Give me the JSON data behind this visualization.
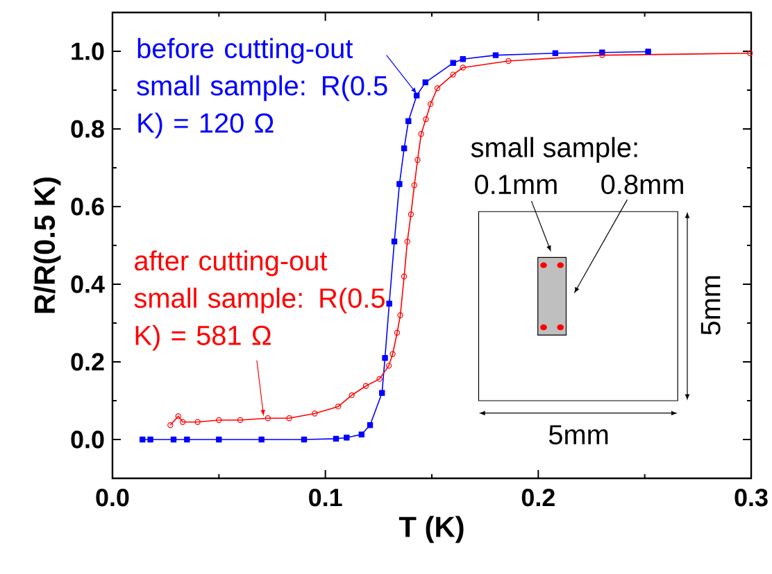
{
  "chart_data": {
    "type": "line",
    "xlabel": "T (K)",
    "ylabel": "R/R(0.5 K)",
    "xlim": [
      0,
      0.3
    ],
    "ylim": [
      -0.1,
      1.1
    ],
    "xticks": [
      {
        "value": 0,
        "label": "0.0"
      },
      0.1,
      0.2,
      0.3
    ],
    "yticks": [
      {
        "value": 0,
        "label": "0.0"
      },
      0.2,
      0.4,
      0.6,
      0.8,
      {
        "value": 1,
        "label": "1.0"
      }
    ],
    "grid": false,
    "series": [
      {
        "color": "#0000ff",
        "marker": "square",
        "x": [
          0.0141,
          0.0178,
          0.0287,
          0.035,
          0.05,
          0.07,
          0.09,
          0.105,
          0.11,
          0.117,
          0.121,
          0.1266,
          0.128,
          0.13,
          0.1324,
          0.1348,
          0.137,
          0.139,
          0.1429,
          0.147,
          0.16,
          0.1646,
          0.18,
          0.208,
          0.23,
          0.2516
        ],
        "values": [
          0,
          0,
          0,
          0,
          0,
          0,
          0,
          0.002,
          0.005,
          0.013,
          0.037,
          0.12,
          0.21,
          0.35,
          0.51,
          0.658,
          0.75,
          0.82,
          0.886,
          0.92,
          0.97,
          0.98,
          0.99,
          0.995,
          0.997,
          0.999
        ]
      },
      {
        "color": "#ff0000",
        "marker": "circle",
        "x": [
          0.0272,
          0.0309,
          0.033,
          0.04,
          0.05,
          0.06,
          0.073,
          0.083,
          0.095,
          0.106,
          0.1124,
          0.119,
          0.1254,
          0.1298,
          0.1316,
          0.1337,
          0.1352,
          0.137,
          0.1385,
          0.1402,
          0.1418,
          0.1433,
          0.145,
          0.1472,
          0.1494,
          0.1526,
          0.16,
          0.1646,
          0.186,
          0.23,
          0.2994
        ],
        "values": [
          0.037,
          0.06,
          0.045,
          0.045,
          0.05,
          0.05,
          0.055,
          0.055,
          0.067,
          0.085,
          0.114,
          0.138,
          0.156,
          0.19,
          0.22,
          0.275,
          0.32,
          0.42,
          0.51,
          0.58,
          0.655,
          0.72,
          0.787,
          0.825,
          0.864,
          0.905,
          0.94,
          0.958,
          0.975,
          0.99,
          0.995
        ]
      }
    ],
    "annotations": [
      {
        "text": "before cutting-out small sample: R(0.5 K) = 120 Ω",
        "x": 0.143,
        "y": 0.89
      },
      {
        "text": "after cutting-out small sample: R(0.5 K) = 581 Ω",
        "x": 0.071,
        "y": 0.06
      },
      "small sample:",
      "0.1mm",
      "0.8mm",
      "5mm",
      "5mm"
    ]
  }
}
